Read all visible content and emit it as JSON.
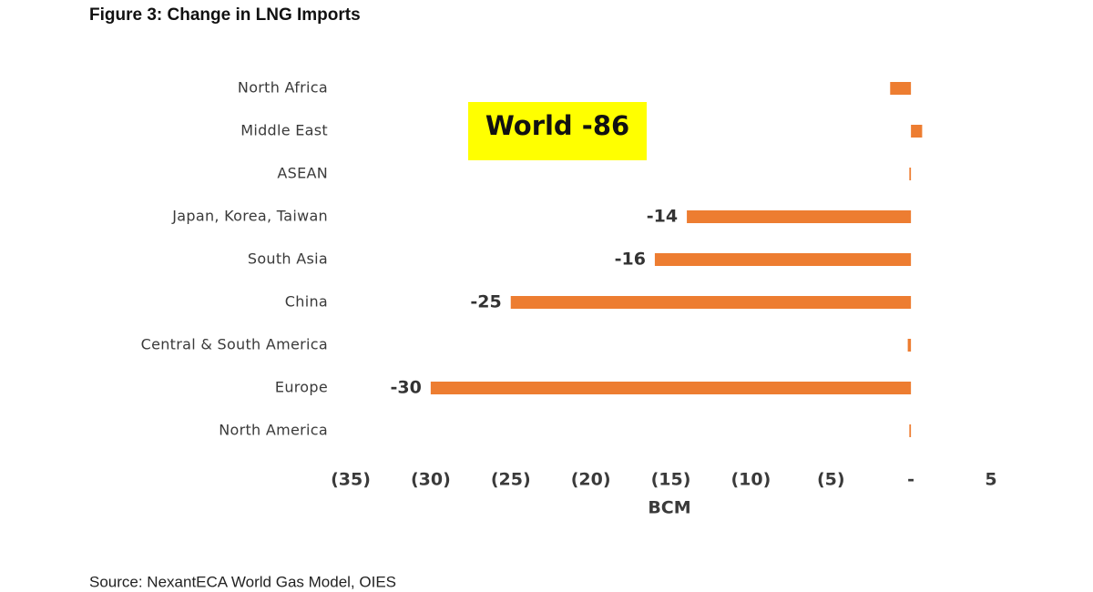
{
  "chart_data": {
    "type": "barh",
    "title": "Figure 3: Change in LNG Imports",
    "annotation": "World -86",
    "x_label": "BCM",
    "source": "Source: NexantECA World Gas Model, OIES",
    "categories": [
      "North Africa",
      "Middle East",
      "ASEAN",
      "Japan, Korea, Taiwan",
      "South Asia",
      "China",
      "Central & South America",
      "Europe",
      "North America"
    ],
    "values": [
      -1.3,
      0.7,
      -0.1,
      -14,
      -16,
      -25,
      -0.2,
      -30,
      -0.1
    ],
    "value_labels": [
      null,
      null,
      null,
      "-14",
      "-16",
      "-25",
      null,
      "-30",
      null
    ],
    "color": "#ed7d31",
    "xlim": [
      -35,
      5
    ],
    "xticks": [
      {
        "value": -35,
        "label": "(35)"
      },
      {
        "value": -30,
        "label": "(30)"
      },
      {
        "value": -25,
        "label": "(25)"
      },
      {
        "value": -20,
        "label": "(20)"
      },
      {
        "value": -15,
        "label": "(15)"
      },
      {
        "value": -10,
        "label": "(10)"
      },
      {
        "value": -5,
        "label": "(5)"
      },
      {
        "value": 0,
        "label": "-"
      },
      5
    ],
    "grid": false
  }
}
